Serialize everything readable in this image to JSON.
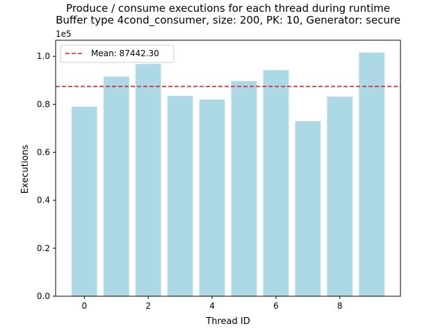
{
  "chart_data": {
    "type": "bar",
    "title_line1": "Produce / consume executions for each thread during runtime",
    "title_line2": "Buffer type 4cond_consumer, size: 200, PK: 10, Generator: secure",
    "xlabel": "Thread ID",
    "ylabel": "Executions",
    "y_offset_label": "1e5",
    "categories": [
      0,
      1,
      2,
      3,
      4,
      5,
      6,
      7,
      8,
      9
    ],
    "values": [
      79000,
      91500,
      96800,
      83500,
      82000,
      89700,
      94200,
      73000,
      83200,
      101600
    ],
    "mean": 87442.3,
    "mean_label": "Mean: 87442.30",
    "xlim": [
      -0.9,
      9.9
    ],
    "ylim": [
      0,
      106700
    ],
    "x_ticks": [
      0,
      2,
      4,
      6,
      8
    ],
    "x_tick_labels": [
      "0",
      "2",
      "4",
      "6",
      "8"
    ],
    "y_ticks": [
      0,
      20000,
      40000,
      60000,
      80000,
      100000
    ],
    "y_tick_labels": [
      "0.0",
      "0.2",
      "0.4",
      "0.6",
      "0.8",
      "1.0"
    ],
    "bar_color": "#add8e6",
    "mean_color": "#e31a1c",
    "grid": false,
    "legend_position": "top-left"
  }
}
